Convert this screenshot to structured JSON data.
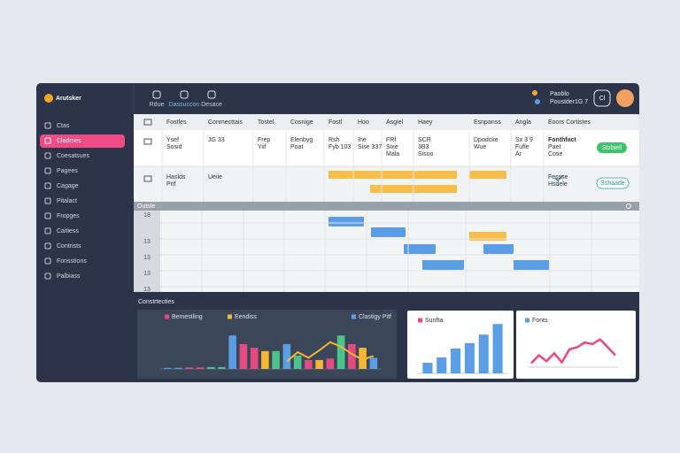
{
  "brand": "Arutsker",
  "toolbar": [
    "Rdue",
    "Dassuccon",
    "Desace"
  ],
  "user": {
    "name": "Paoblo",
    "detail": "Poustder1G 7",
    "badge": "Cl"
  },
  "sidebar": {
    "items": [
      "Ctas",
      "Cladmes",
      "Coesatsues",
      "Pagees",
      "Cagage",
      "Pitalact",
      "Fropges",
      "Caitiess",
      "Contrists",
      "Fonsstions",
      "Palbiass"
    ],
    "active": 1
  },
  "table": {
    "headers": [
      "Fostles",
      "Conmecttais",
      "Tostel",
      "Cosnige",
      "Fostl",
      "Hoo",
      "Asgiel",
      "Haey",
      "Esnpanss",
      "Angla",
      "Eoors Cortistes"
    ],
    "rows": [
      {
        "cells": [
          [
            "Ysef",
            "Sosid"
          ],
          [
            "JG 33"
          ],
          [
            "Frep",
            "Yiif"
          ],
          [
            "Elenbyg",
            "Poat"
          ],
          [
            "Rsh",
            "Fyb 103"
          ],
          [
            "Ihe",
            "Sise 337"
          ],
          [
            "FRf",
            "Sixe",
            "Mala"
          ],
          [
            "SCR",
            "3B3",
            "Sisoo"
          ],
          [
            "Dpodcke",
            "Wue"
          ],
          [
            "Sx 3 9",
            "Fufle",
            "Ar"
          ],
          [
            "Fonthfact",
            "Paet",
            "Cotie"
          ]
        ],
        "button": "Stzbiell"
      },
      {
        "cells": [
          [
            "Haslds",
            "Prif"
          ],
          [
            "Ueiie"
          ],
          null,
          null,
          null,
          null,
          null,
          null,
          null,
          null,
          [
            "Fessse",
            "Hsdele"
          ]
        ],
        "button": "Sshaade"
      }
    ]
  },
  "gantt": {
    "title": "Outsle",
    "rows": [
      18,
      13,
      13,
      13,
      13
    ]
  },
  "section_title": "Constrtecties",
  "chart_data": [
    {
      "type": "bar",
      "legend": [
        {
          "name": "Bemestling",
          "color": "#e84a7f"
        },
        {
          "name": "Eendiss",
          "color": "#f5b731"
        },
        {
          "name": "Clastigy Pitf",
          "color": "#5b9ee6"
        }
      ],
      "values": [
        3,
        3,
        4,
        4,
        5,
        5,
        90,
        67,
        57,
        48,
        48,
        67,
        36,
        24,
        24,
        28,
        90,
        67,
        57,
        30
      ],
      "colors": [
        "#5b9ee6",
        "#5b9ee6",
        "#e84a7f",
        "#e84a7f",
        "#4cc38a",
        "#4cc38a",
        "#5b9ee6",
        "#e84a7f",
        "#e84a7f",
        "#f5b731",
        "#4cc38a",
        "#5b9ee6",
        "#4cc38a",
        "#e84a7f",
        "#f5b731",
        "#e84a7f",
        "#4cc38a",
        "#e84a7f",
        "#f5b731",
        "#5b9ee6"
      ],
      "line": {
        "color": "#f5b731",
        "values": [
          null,
          null,
          null,
          null,
          null,
          null,
          null,
          null,
          null,
          null,
          null,
          20,
          45,
          30,
          50,
          72,
          60,
          40,
          25,
          35
        ]
      },
      "ylim": [
        0,
        100
      ]
    },
    {
      "type": "bar",
      "legend": [
        {
          "name": "Sunfta",
          "color": "#e84a7f"
        }
      ],
      "values": [
        20,
        30,
        47,
        57,
        73,
        93
      ],
      "color": "#5b9ee6",
      "ylim": [
        0,
        100
      ]
    },
    {
      "type": "line",
      "legend": [
        {
          "name": "Fonts",
          "color": "#5b9ee6"
        }
      ],
      "values": [
        10,
        30,
        15,
        35,
        12,
        45,
        50,
        62,
        58,
        70,
        50,
        30
      ],
      "color": "#e84a7f",
      "ylim": [
        0,
        100
      ]
    }
  ]
}
